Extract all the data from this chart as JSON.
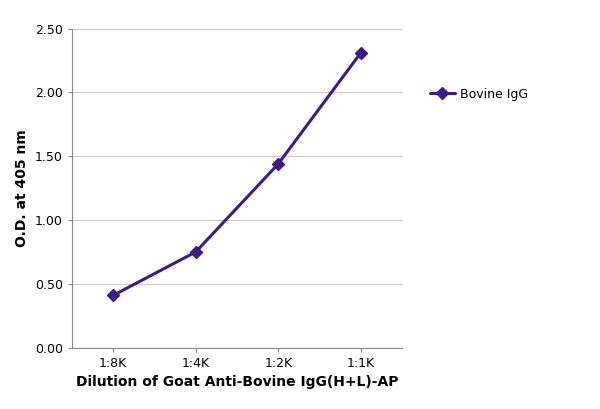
{
  "x_labels": [
    "1:8K",
    "1:4K",
    "1:2K",
    "1:1K"
  ],
  "x_values": [
    0,
    1,
    2,
    3
  ],
  "y_values": [
    0.41,
    0.75,
    1.44,
    2.31
  ],
  "line_color": "#3d1a8c",
  "marker_style": "D",
  "marker_size": 6,
  "marker_face_color": "#3d1a8c",
  "line_width": 2.2,
  "ylabel": "O.D. at 405 nm",
  "xlabel": "Dilution of Goat Anti-Bovine IgG(H+L)-AP",
  "xlabel_fontsize": 10,
  "ylabel_fontsize": 10,
  "ylim": [
    0.0,
    2.5
  ],
  "yticks": [
    0.0,
    0.5,
    1.0,
    1.5,
    2.0,
    2.5
  ],
  "legend_label": "Bovine IgG",
  "legend_fontsize": 9,
  "tick_fontsize": 9,
  "background_color": "#ffffff",
  "grid_color": "#c8c8c8",
  "title": ""
}
